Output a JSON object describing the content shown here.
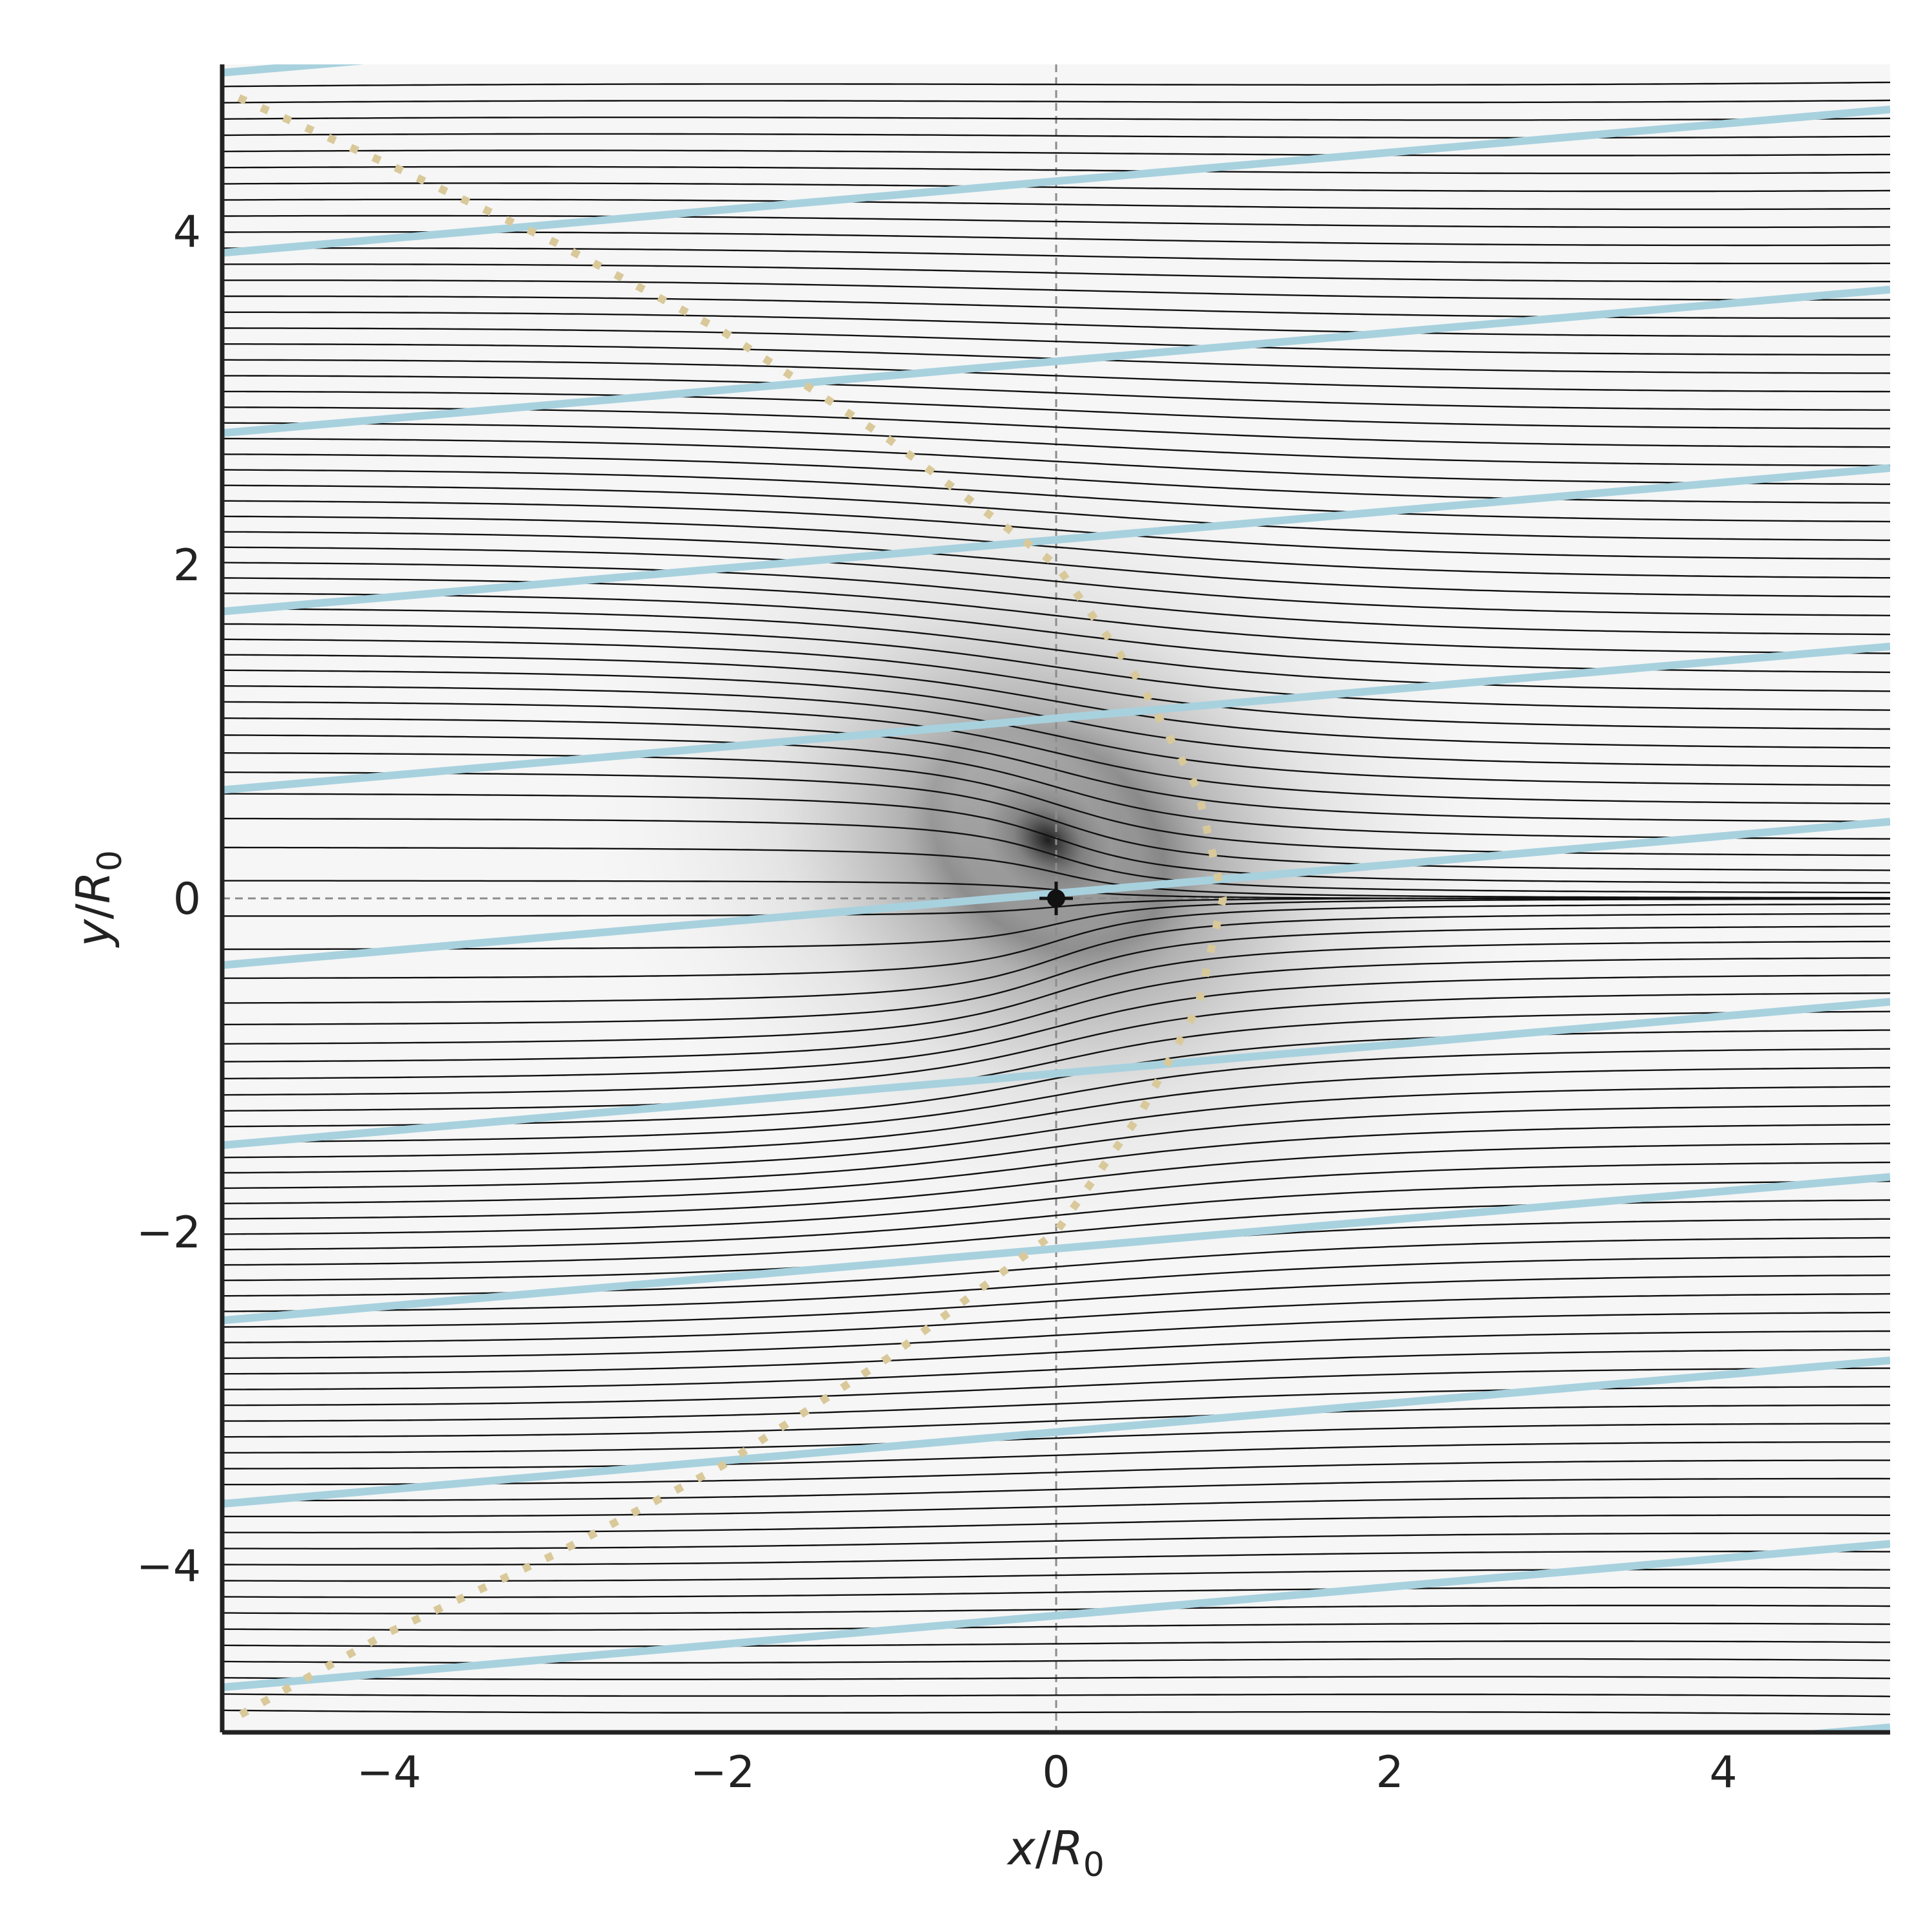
{
  "chart_data": {
    "type": "line",
    "title": "",
    "xlabel": {
      "var": "x",
      "sep": "/",
      "sym": "R",
      "sub": "0"
    },
    "ylabel": {
      "var": "y",
      "sep": "/",
      "sym": "R",
      "sub": "0"
    },
    "xlim": [
      -5,
      5
    ],
    "ylim": [
      -5,
      5
    ],
    "xticks": [
      -4,
      -2,
      0,
      2,
      4
    ],
    "yticks": [
      -4,
      -2,
      0,
      2,
      4
    ],
    "xtick_labels": [
      "−4",
      "−2",
      "0",
      "2",
      "4"
    ],
    "ytick_labels": [
      "−4",
      "−2",
      "0",
      "2",
      "4"
    ],
    "grid": false,
    "legend": "none",
    "reference_lines": {
      "x": 0,
      "y": 0,
      "style": "dashed",
      "color": "#8c8c8c"
    },
    "background_density": {
      "description_free": true,
      "center": [
        0,
        0.3
      ],
      "peak_color": "#1e1e1e",
      "base_color": "#f6f6f6"
    },
    "series": [
      {
        "role": "deflected-trajectories",
        "color": "#111111",
        "count": 96,
        "y_start": -4.88,
        "y_end": 4.88,
        "deflection_peak_x": 0
      },
      {
        "role": "tilted-lines",
        "color": "#a8d1de",
        "slope": 0.086,
        "intercepts": [
          -5.4,
          -4.3,
          -3.2,
          -2.1,
          -1.05,
          0.03,
          1.08,
          2.15,
          3.22,
          4.3,
          5.38
        ]
      },
      {
        "role": "dotted-boundary",
        "color": "#d9c99a",
        "style": "dotted",
        "x": [
          -4.9,
          -4.0,
          -3.0,
          -2.0,
          -1.0,
          0.0,
          0.5,
          0.85,
          1.0,
          0.85,
          0.5,
          0.0,
          -1.0,
          -2.0,
          -3.0,
          -4.0,
          -4.9
        ],
        "y": [
          4.8,
          4.4,
          3.93,
          3.4,
          2.75,
          2.0,
          1.3,
          0.65,
          0.0,
          -0.65,
          -1.3,
          -2.0,
          -2.75,
          -3.4,
          -3.93,
          -4.4,
          -4.9
        ]
      }
    ],
    "markers": [
      {
        "x": 0,
        "y": 0,
        "marker": "plus-dot",
        "color": "#111111"
      }
    ]
  }
}
